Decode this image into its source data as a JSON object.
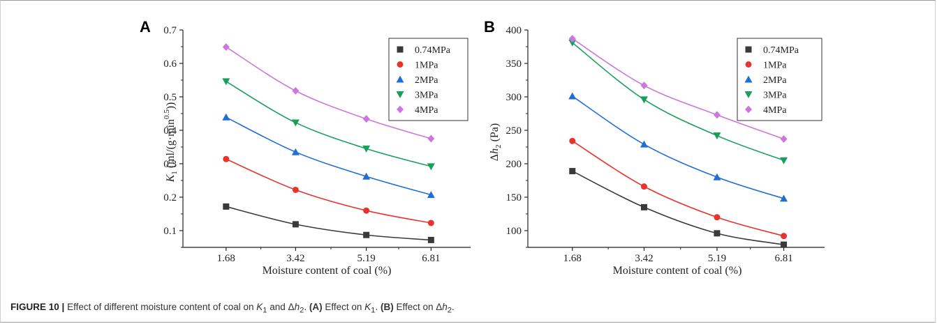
{
  "caption": {
    "label": "FIGURE 10 |",
    "text_1": "Effect of different moisture content of coal on ",
    "var_k1": "K",
    "sub_1": "1",
    "text_2": " and Δ",
    "var_h": "h",
    "sub_2": "2",
    "text_3": ". ",
    "tag_a": "(A)",
    "text_4": " Effect on ",
    "var_k1b": "K",
    "sub_3": "1",
    "text_5": ". ",
    "tag_b": "(B)",
    "text_6": " Effect on Δ",
    "var_h2": "h",
    "sub_4": "2",
    "text_7": "."
  },
  "colors": {
    "0.74MPa": "#3a3a3a",
    "1MPa": "#e8332e",
    "2MPa": "#1f6fd6",
    "3MPa": "#18a05a",
    "4MPa": "#cc77dd"
  },
  "chart_data": [
    {
      "panel": "A",
      "type": "line",
      "xlabel": "Moisture content of coal (%)",
      "ylabel": "K1 (ml/(g·min0.5))",
      "ylabel_parts": {
        "var": "K",
        "sub": "1",
        "mid": " (ml/(g·min",
        "sup": "0.5",
        "end": "))"
      },
      "x": [
        1.68,
        3.42,
        5.19,
        6.81
      ],
      "xticks": [
        "1.68",
        "3.42",
        "5.19",
        "6.81"
      ],
      "ylim": [
        0.05,
        0.7
      ],
      "yticks": [
        "0.1",
        "0.2",
        "0.3",
        "0.4",
        "0.5",
        "0.6",
        "0.7"
      ],
      "legend_position": "top-right",
      "series": [
        {
          "name": "0.74MPa",
          "marker": "square",
          "values": [
            0.172,
            0.119,
            0.087,
            0.072
          ]
        },
        {
          "name": "1MPa",
          "marker": "circle",
          "values": [
            0.314,
            0.222,
            0.16,
            0.123
          ]
        },
        {
          "name": "2MPa",
          "marker": "triangle-up",
          "values": [
            0.439,
            0.335,
            0.262,
            0.207
          ]
        },
        {
          "name": "3MPa",
          "marker": "triangle-down",
          "values": [
            0.546,
            0.423,
            0.345,
            0.292
          ]
        },
        {
          "name": "4MPa",
          "marker": "diamond",
          "values": [
            0.649,
            0.518,
            0.434,
            0.375
          ]
        }
      ]
    },
    {
      "panel": "B",
      "type": "line",
      "xlabel": "Moisture content of coal (%)",
      "ylabel": "Δh2 (Pa)",
      "ylabel_parts": {
        "pre": "Δ",
        "var": "h",
        "sub": "2",
        "end": " (Pa)"
      },
      "x": [
        1.68,
        3.42,
        5.19,
        6.81
      ],
      "xticks": [
        "1.68",
        "3.42",
        "5.19",
        "6.81"
      ],
      "ylim": [
        75,
        400
      ],
      "yticks": [
        "100",
        "150",
        "200",
        "250",
        "300",
        "350",
        "400"
      ],
      "legend_position": "top-right",
      "series": [
        {
          "name": "0.74MPa",
          "marker": "square",
          "values": [
            189,
            135,
            96,
            79
          ]
        },
        {
          "name": "1MPa",
          "marker": "circle",
          "values": [
            234,
            166,
            120,
            92
          ]
        },
        {
          "name": "2MPa",
          "marker": "triangle-up",
          "values": [
            301,
            229,
            180,
            148
          ]
        },
        {
          "name": "3MPa",
          "marker": "triangle-down",
          "values": [
            381,
            296,
            242,
            205
          ]
        },
        {
          "name": "4MPa",
          "marker": "diamond",
          "values": [
            387,
            317,
            273,
            237
          ]
        }
      ]
    }
  ]
}
